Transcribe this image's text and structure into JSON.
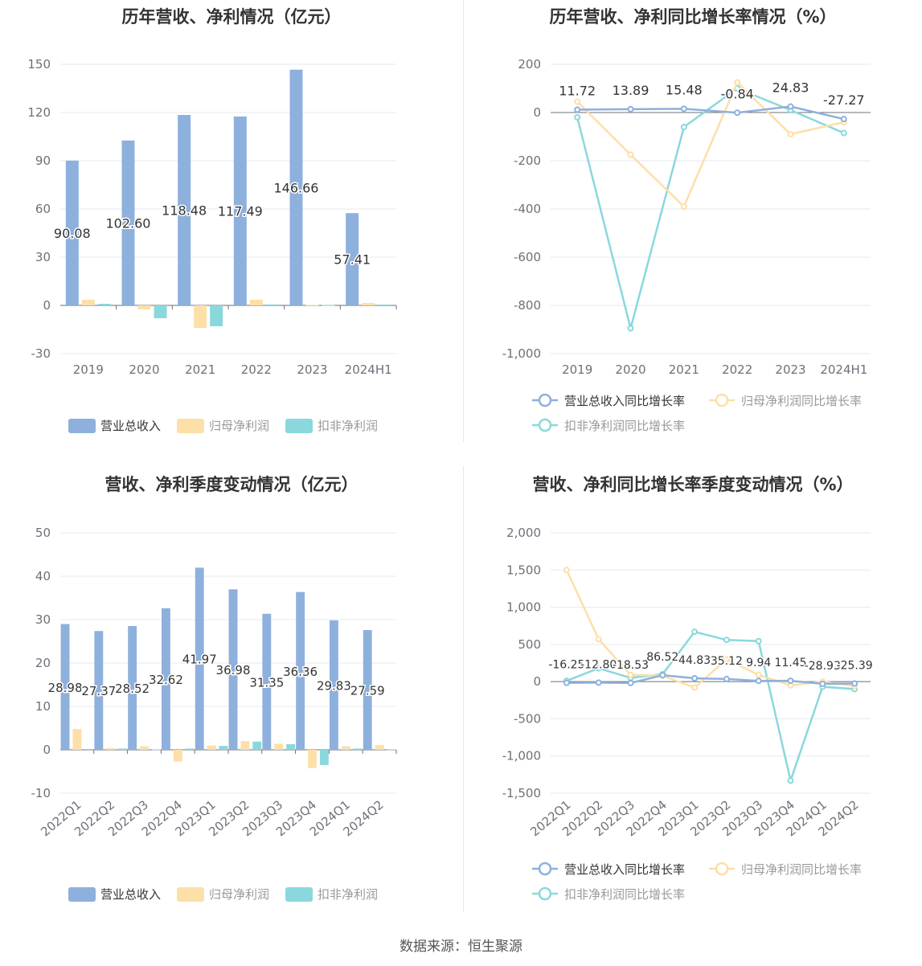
{
  "source": "数据来源：恒生聚源",
  "colors": {
    "revenue": "#8eb0dc",
    "parent": "#fddfa8",
    "deducted": "#8ad8dc",
    "grid": "#e6e9f0",
    "axis": "#6e7079",
    "label": "#333333"
  },
  "charts": [
    {
      "id": "annual-amount",
      "title": "历年营收、净利情况（亿元）",
      "type": "bar",
      "categories": [
        "2019",
        "2020",
        "2021",
        "2022",
        "2023",
        "2024H1"
      ],
      "ylim": [
        -30,
        150
      ],
      "yticks": [
        "-30",
        "0",
        "30",
        "60",
        "90",
        "120",
        "150"
      ],
      "series": [
        {
          "name": "营业总收入",
          "values": [
            90.08,
            102.6,
            118.48,
            117.49,
            146.66,
            57.41
          ],
          "labels": [
            "90.08",
            "102.60",
            "118.48",
            "117.49",
            "146.66",
            "57.41"
          ]
        },
        {
          "name": "归母净利润",
          "values": [
            3.5,
            -2.5,
            -14.0,
            3.5,
            0.3,
            1.5
          ]
        },
        {
          "name": "扣非净利润",
          "values": [
            1.0,
            -8.0,
            -13.0,
            0.6,
            0.2,
            0.5
          ]
        }
      ],
      "legend": "bottom"
    },
    {
      "id": "annual-growth",
      "title": "历年营收、净利同比增长率情况（%）",
      "type": "line",
      "categories": [
        "2019",
        "2020",
        "2021",
        "2022",
        "2023",
        "2024H1"
      ],
      "ylim": [
        -1000,
        200
      ],
      "yticks": [
        "-1,000",
        "-800",
        "-600",
        "-400",
        "-200",
        "0",
        "200"
      ],
      "series": [
        {
          "name": "营业总收入同比增长率",
          "values": [
            11.72,
            13.89,
            15.48,
            -0.84,
            24.83,
            -27.27
          ],
          "labels": [
            "11.72",
            "13.89",
            "15.48",
            "-0.84",
            "24.83",
            "-27.27"
          ]
        },
        {
          "name": "归母净利润同比增长率",
          "values": [
            45,
            -175,
            -390,
            125,
            -90,
            -40
          ]
        },
        {
          "name": "扣非净利润同比增长率",
          "values": [
            -20,
            -895,
            -60,
            100,
            10,
            -85
          ]
        }
      ],
      "legend": "bottom"
    },
    {
      "id": "quarterly-amount",
      "title": "营收、净利季度变动情况（亿元）",
      "type": "bar",
      "categories": [
        "2022Q1",
        "2022Q2",
        "2022Q3",
        "2022Q4",
        "2023Q1",
        "2023Q2",
        "2023Q3",
        "2023Q4",
        "2024Q1",
        "2024Q2"
      ],
      "ylim": [
        -10,
        50
      ],
      "yticks": [
        "-10",
        "0",
        "10",
        "20",
        "30",
        "40",
        "50"
      ],
      "series": [
        {
          "name": "营业总收入",
          "values": [
            28.98,
            27.37,
            28.52,
            32.62,
            41.97,
            36.98,
            31.35,
            36.36,
            29.83,
            27.59
          ],
          "labels": [
            "28.98",
            "27.37",
            "28.52",
            "32.62",
            "41.97",
            "36.98",
            "31.35",
            "36.36",
            "29.83",
            "27.59"
          ]
        },
        {
          "name": "归母净利润",
          "values": [
            4.8,
            0.4,
            0.8,
            -2.7,
            1.0,
            2.0,
            1.4,
            -4.2,
            0.8,
            1.1
          ]
        },
        {
          "name": "扣非净利润",
          "values": [
            0.2,
            0.3,
            0.1,
            0.3,
            0.9,
            1.9,
            1.3,
            -3.5,
            0.3,
            0.1
          ]
        }
      ],
      "legend": "bottom"
    },
    {
      "id": "quarterly-growth",
      "title": "营收、净利同比增长率季度变动情况（%）",
      "type": "line",
      "categories": [
        "2022Q1",
        "2022Q2",
        "2022Q3",
        "2022Q4",
        "2023Q1",
        "2023Q2",
        "2023Q3",
        "2023Q4",
        "2024Q1",
        "2024Q2"
      ],
      "ylim": [
        -1500,
        2000
      ],
      "yticks": [
        "-1,500",
        "-1,000",
        "-500",
        "0",
        "500",
        "1,000",
        "1,500",
        "2,000"
      ],
      "series": [
        {
          "name": "营业总收入同比增长率",
          "values": [
            -16.25,
            -12.8,
            -18.53,
            86.52,
            44.83,
            35.12,
            9.94,
            11.45,
            -28.93,
            -25.39
          ],
          "labels": [
            "-16.25",
            "-12.80",
            "-18.53",
            "86.52",
            "44.83",
            "35.12",
            "9.94",
            "11.45",
            "-28.93",
            "-25.39"
          ]
        },
        {
          "name": "归母净利润同比增长率",
          "values": [
            1500,
            570,
            90,
            80,
            -80,
            300,
            90,
            -50,
            0,
            -60
          ]
        },
        {
          "name": "扣非净利润同比增长率",
          "values": [
            10,
            180,
            50,
            100,
            670,
            560,
            545,
            -1330,
            -70,
            -100
          ]
        }
      ],
      "legend": "bottom"
    }
  ]
}
